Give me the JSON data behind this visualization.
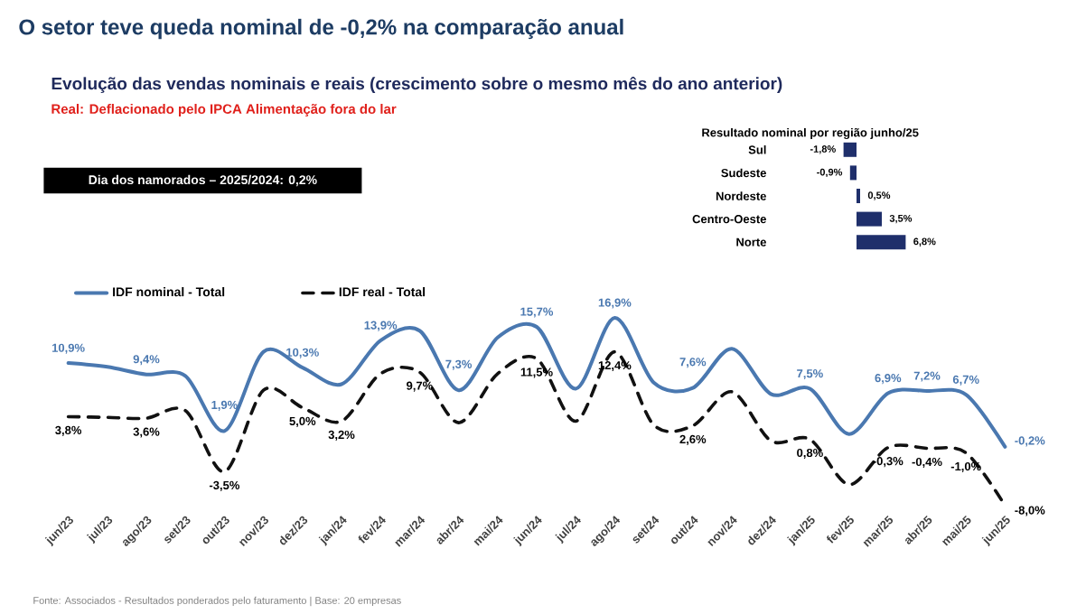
{
  "chart_data": [
    {
      "type": "other",
      "title": "O setor teve queda nominal de -0,2% na comparação anual",
      "subtitle": "Evolução das vendas nominais e reais (crescimento sobre o mesmo mês do ano anterior)",
      "annotations": [
        "Real: Deflacionado pelo IPCA Alimentação fora do lar",
        "Dia dos namorados – 2025/2024: 0,2%",
        "Fonte: Associados - Resultados ponderados pelo faturamento | Base: 20 empresas"
      ]
    },
    {
      "type": "line",
      "categories": [
        "jun/23",
        "jul/23",
        "ago/23",
        "set/23",
        "out/23",
        "nov/23",
        "dez/23",
        "jan/24",
        "fev/24",
        "mar/24",
        "abr/24",
        "mai/24",
        "jun/24",
        "jul/24",
        "ago/24",
        "set/24",
        "out/24",
        "nov/24",
        "dez/24",
        "jan/25",
        "fev/25",
        "mar/25",
        "abr/25",
        "mai/25",
        "jun/25"
      ],
      "series": [
        {
          "name": "IDF nominal - Total",
          "color": "#4a78b0",
          "line_style": "solid",
          "values": [
            10.9,
            10.4,
            9.4,
            9.2,
            1.9,
            12.4,
            10.3,
            8.1,
            13.9,
            15.2,
            7.3,
            14.3,
            15.7,
            7.5,
            16.9,
            8.3,
            7.6,
            12.8,
            6.8,
            7.5,
            1.5,
            6.9,
            7.2,
            6.7,
            -0.2
          ],
          "value_labels": [
            "10,9%",
            null,
            "9,4%",
            null,
            "1,9%",
            null,
            "10,3%",
            null,
            "13,9%",
            null,
            "7,3%",
            null,
            "15,7%",
            null,
            "16,9%",
            null,
            "7,6%",
            null,
            null,
            "7,5%",
            null,
            "6,9%",
            "7,2%",
            "6,7%",
            "-0,2%"
          ]
        },
        {
          "name": "IDF real - Total",
          "color": "#111111",
          "line_style": "dashed",
          "values": [
            3.8,
            3.7,
            3.6,
            4.6,
            -3.5,
            7.3,
            5.0,
            3.2,
            9.5,
            9.7,
            3.0,
            9.5,
            11.5,
            3.2,
            12.4,
            2.7,
            2.6,
            7.1,
            0.6,
            0.8,
            -5.2,
            -0.3,
            -0.4,
            -1.0,
            -8.0
          ],
          "value_labels": [
            "3,8%",
            null,
            "3,6%",
            null,
            "-3,5%",
            null,
            "5,0%",
            "3,2%",
            null,
            "9,7%",
            null,
            null,
            "11,5%",
            null,
            "12,4%",
            null,
            "2,6%",
            null,
            null,
            "0,8%",
            null,
            "-0,3%",
            "-0,4%",
            "-1,0%",
            "-8,0%"
          ]
        }
      ],
      "tick_labels": "x",
      "legend": "top"
    },
    {
      "type": "bar",
      "orientation": "horizontal",
      "title": "Resultado nominal por região junho/25",
      "categories": [
        "Sul",
        "Sudeste",
        "Nordeste",
        "Centro-Oeste",
        "Norte"
      ],
      "values": [
        -1.8,
        -0.9,
        0.5,
        3.5,
        6.8
      ],
      "value_labels": [
        "-1,8%",
        "-0,9%",
        "0,5%",
        "3,5%",
        "6,8%"
      ],
      "color": "#1f2f6b",
      "xlim": [
        -2,
        7
      ],
      "tick_labels": "y"
    }
  ]
}
